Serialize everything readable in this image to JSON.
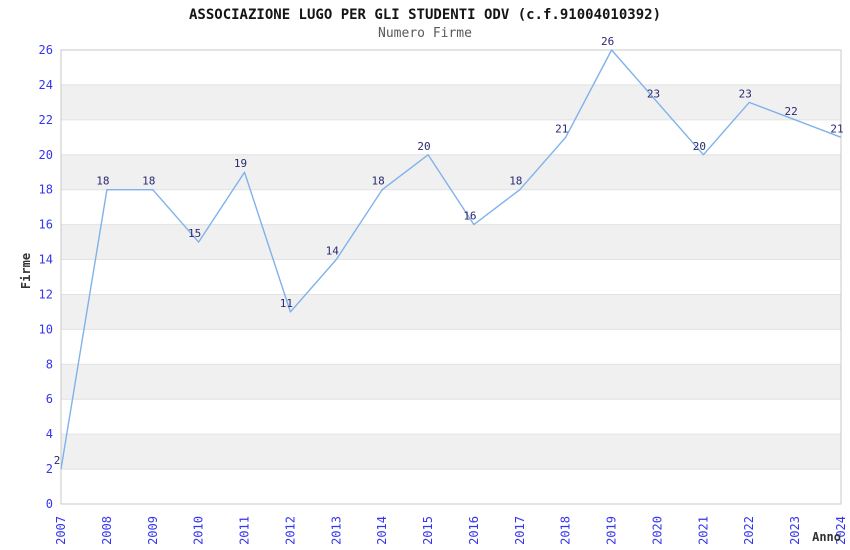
{
  "title": "ASSOCIAZIONE LUGO PER GLI STUDENTI ODV (c.f.91004010392)",
  "subtitle": "Numero Firme",
  "chart_data": {
    "type": "line",
    "title": "ASSOCIAZIONE LUGO PER GLI STUDENTI ODV (c.f.91004010392)",
    "subtitle": "Numero Firme",
    "xlabel": "Anno",
    "ylabel": "Firme",
    "x": [
      "2007",
      "2008",
      "2009",
      "2010",
      "2011",
      "2012",
      "2013",
      "2014",
      "2015",
      "2016",
      "2017",
      "2018",
      "2019",
      "2020",
      "2021",
      "2022",
      "2023",
      "2024"
    ],
    "series": [
      {
        "name": "Numero Firme",
        "values": [
          2,
          18,
          18,
          15,
          19,
          11,
          14,
          18,
          20,
          16,
          18,
          21,
          26,
          23,
          20,
          23,
          22,
          21
        ]
      }
    ],
    "ylim": [
      0,
      26
    ],
    "yticks": [
      0,
      2,
      4,
      6,
      8,
      10,
      12,
      14,
      16,
      18,
      20,
      22,
      24,
      26
    ],
    "grid": "horizontal",
    "banded_background": true,
    "data_labels": true,
    "legend": "none",
    "colors": {
      "line": "#7fb2ea",
      "tick_label": "#3535f0",
      "data_label": "#2a2a70",
      "band": "#f0f0f0",
      "gridline": "#e2e2e2",
      "plot_border": "#c9c9c9",
      "axis_label": "#333333",
      "title": "#141414",
      "subtitle": "#5a5a5a"
    }
  }
}
